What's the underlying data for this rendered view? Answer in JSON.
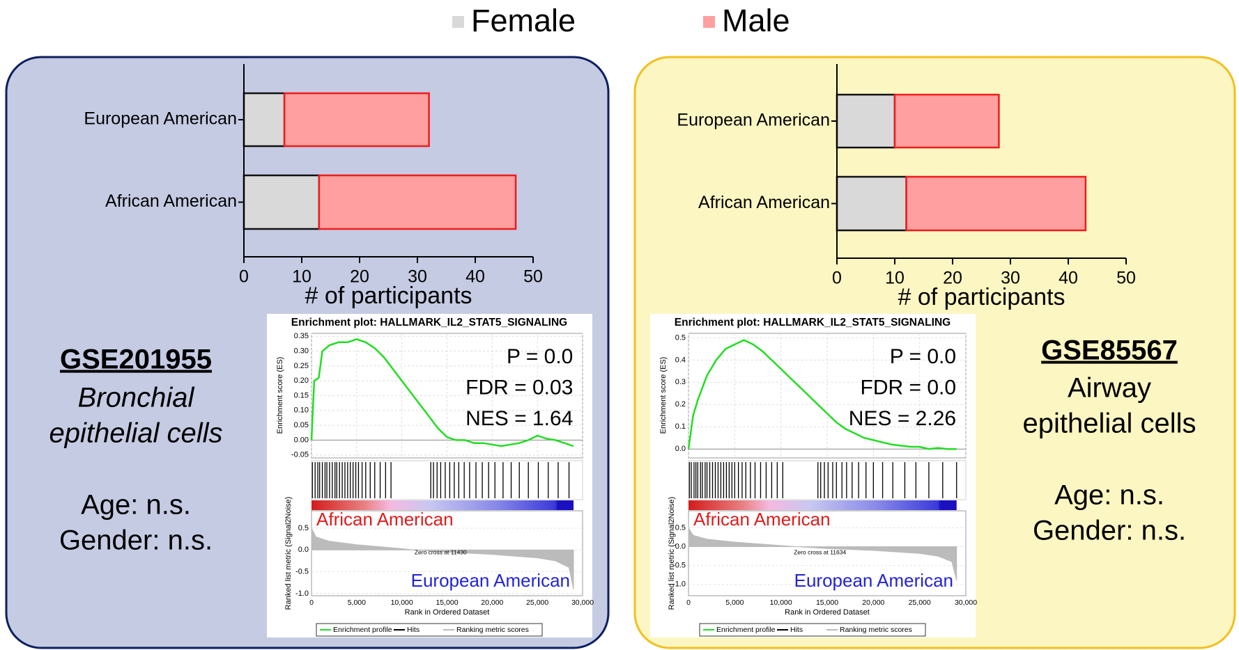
{
  "chart_data": [
    {
      "type": "bar",
      "orientation": "horizontal",
      "stacked": true,
      "categories": [
        "European American",
        "African American"
      ],
      "series": [
        {
          "name": "Female",
          "color": "#d9d9d9",
          "stroke": "#111111",
          "values": [
            7,
            13
          ]
        },
        {
          "name": "Male",
          "color": "#ff9f9f",
          "stroke": "#ee1c1c",
          "values": [
            25,
            34
          ]
        }
      ],
      "xlim": [
        0,
        50
      ],
      "xticks": [
        0,
        10,
        20,
        30,
        40,
        50
      ],
      "xlabel": "# of participants"
    },
    {
      "type": "gsea",
      "title": "Enrichment plot: HALLMARK_IL2_STAT5_SIGNALING",
      "ylabel": "Enrichment score (ES)",
      "y2label": "Ranked list metric (Signal2Noise)",
      "xlabel": "Rank in Ordered Dataset",
      "xlim": [
        0,
        30000
      ],
      "xticks": [
        0,
        {
          "value": 5000,
          "label": "5,000"
        },
        {
          "value": 10000,
          "label": "10,000"
        },
        {
          "value": 15000,
          "label": "15,000"
        },
        {
          "value": 20000,
          "label": "20,000"
        },
        {
          "value": 25000,
          "label": "25,000"
        },
        {
          "value": 30000,
          "label": "30,000"
        }
      ],
      "ylim": [
        -0.06,
        0.36
      ],
      "yticks": [
        -0.05,
        {
          "value": 0,
          "label": "0.00"
        },
        0.05,
        {
          "value": 0.1,
          "label": "0.10"
        },
        0.15,
        {
          "value": 0.2,
          "label": "0.20"
        },
        0.25,
        {
          "value": 0.3,
          "label": "0.30"
        },
        0.35
      ],
      "y2lim": [
        -1.05,
        0.9
      ],
      "y2ticks": [
        {
          "value": -1,
          "label": "-1.0"
        },
        -0.5,
        {
          "value": 0,
          "label": "0.0"
        },
        0.5
      ],
      "grid": true,
      "series": [
        {
          "name": "Enrichment profile",
          "color": "#22dd22",
          "x": [
            0,
            300,
            800,
            1200,
            2000,
            3000,
            4000,
            5000,
            6000,
            7000,
            8000,
            9000,
            10000,
            11000,
            12000,
            13000,
            14000,
            15000,
            16000,
            17000,
            18000,
            19000,
            20000,
            21000,
            22000,
            23000,
            24000,
            25000,
            26000,
            27000,
            28000,
            29000
          ],
          "values": [
            0,
            0.2,
            0.21,
            0.3,
            0.32,
            0.33,
            0.33,
            0.34,
            0.33,
            0.31,
            0.28,
            0.24,
            0.2,
            0.16,
            0.12,
            0.08,
            0.04,
            0.01,
            0,
            0,
            -0.01,
            -0.01,
            -0.015,
            -0.02,
            -0.015,
            -0.01,
            0,
            0.015,
            0.005,
            0,
            -0.01,
            -0.02
          ]
        },
        {
          "name": "Hits",
          "color": "#000000",
          "x": [
            100,
            400,
            700,
            900,
            1200,
            1500,
            1700,
            2000,
            2300,
            2600,
            2800,
            3100,
            3400,
            3700,
            4000,
            4300,
            4600,
            4900,
            5200,
            5600,
            6000,
            6500,
            7000,
            7600,
            8200,
            8800,
            13200,
            13500,
            13900,
            14300,
            14800,
            15300,
            15800,
            16300,
            16900,
            17500,
            18200,
            18900,
            19600,
            20300,
            21200,
            22100,
            23000,
            24000,
            25100,
            26200,
            27300,
            28500
          ]
        },
        {
          "name": "Ranking metric scores",
          "color": "#bbbbbb",
          "axis": "y2",
          "x": [
            0,
            500,
            2000,
            5000,
            10000,
            11430,
            15000,
            20000,
            25000,
            27000,
            28500,
            29000
          ],
          "values": [
            0.5,
            0.3,
            0.2,
            0.12,
            0.03,
            0,
            -0.05,
            -0.1,
            -0.18,
            -0.25,
            -0.4,
            -0.9
          ]
        }
      ],
      "stats": [
        "P = 0.0",
        "FDR = 0.03",
        "NES = 1.64"
      ],
      "class_labels": [
        "African American",
        "European American"
      ],
      "class_colors": [
        "#e01b1b",
        "#2323d6"
      ],
      "zero_cross": "Zero cross at 11430"
    },
    {
      "type": "bar",
      "orientation": "horizontal",
      "stacked": true,
      "categories": [
        "European American",
        "African American"
      ],
      "series": [
        {
          "name": "Female",
          "color": "#d9d9d9",
          "stroke": "#111111",
          "values": [
            10,
            12
          ]
        },
        {
          "name": "Male",
          "color": "#ff9f9f",
          "stroke": "#ee1c1c",
          "values": [
            18,
            31
          ]
        }
      ],
      "xlim": [
        0,
        50
      ],
      "xticks": [
        0,
        10,
        20,
        30,
        40,
        50
      ],
      "xlabel": "# of participants"
    },
    {
      "type": "gsea",
      "title": "Enrichment plot: HALLMARK_IL2_STAT5_SIGNALING",
      "ylabel": "Enrichment score (ES)",
      "y2label": "Ranked list metric (Signal2Noise)",
      "xlabel": "Rank in Ordered Dataset",
      "xlim": [
        0,
        30000
      ],
      "xticks": [
        0,
        {
          "value": 5000,
          "label": "5,000"
        },
        {
          "value": 10000,
          "label": "10,000"
        },
        {
          "value": 15000,
          "label": "15,000"
        },
        {
          "value": 20000,
          "label": "20,000"
        },
        {
          "value": 25000,
          "label": "25,000"
        },
        {
          "value": 30000,
          "label": "30,000"
        }
      ],
      "ylim": [
        -0.04,
        0.52
      ],
      "yticks": [
        {
          "value": 0,
          "label": "0.0"
        },
        0.1,
        0.2,
        0.3,
        0.4,
        0.5
      ],
      "y2lim": [
        -1.3,
        0.95
      ],
      "y2ticks": [
        {
          "value": -1,
          "label": "-1.0"
        },
        -0.5,
        {
          "value": 0,
          "label": "0.0"
        },
        0.5
      ],
      "grid": true,
      "series": [
        {
          "name": "Enrichment profile",
          "color": "#22dd22",
          "x": [
            0,
            500,
            1000,
            2000,
            3000,
            4000,
            5000,
            6000,
            7000,
            8000,
            9000,
            10000,
            11000,
            12000,
            13000,
            14000,
            15000,
            16000,
            17000,
            18000,
            19000,
            20000,
            21000,
            22000,
            23000,
            24000,
            25000,
            26000,
            27000,
            28000,
            29000
          ],
          "values": [
            0,
            0.15,
            0.22,
            0.33,
            0.4,
            0.45,
            0.47,
            0.49,
            0.47,
            0.44,
            0.4,
            0.36,
            0.32,
            0.28,
            0.24,
            0.2,
            0.16,
            0.12,
            0.09,
            0.07,
            0.05,
            0.04,
            0.03,
            0.02,
            0.015,
            0.01,
            0.01,
            0,
            0.005,
            0,
            0
          ]
        },
        {
          "name": "Hits",
          "color": "#000000",
          "x": [
            100,
            300,
            600,
            800,
            1000,
            1300,
            1500,
            1800,
            2000,
            2300,
            2600,
            2900,
            3200,
            3500,
            3800,
            4100,
            4400,
            4700,
            5000,
            5400,
            5800,
            6200,
            6700,
            7200,
            7800,
            8400,
            9000,
            9600,
            10200,
            14000,
            14300,
            14700,
            15100,
            15600,
            16000,
            16600,
            17100,
            17700,
            18400,
            19200,
            20000,
            21000,
            22100,
            23400,
            24600,
            26000,
            27500,
            29000
          ]
        },
        {
          "name": "Ranking metric scores",
          "color": "#bbbbbb",
          "axis": "y2",
          "x": [
            0,
            500,
            2000,
            5000,
            10000,
            11634,
            15000,
            20000,
            25000,
            27000,
            28500,
            29000
          ],
          "values": [
            0.5,
            0.3,
            0.2,
            0.12,
            0.03,
            0,
            -0.05,
            -0.1,
            -0.18,
            -0.25,
            -0.4,
            -0.9
          ]
        }
      ],
      "stats": [
        "P = 0.0",
        "FDR = 0.0",
        "NES = 2.26"
      ],
      "class_labels": [
        "African American",
        "European American"
      ],
      "class_colors": [
        "#e01b1b",
        "#2323d6"
      ],
      "zero_cross": "Zero cross at 11634"
    }
  ],
  "panels": [
    {
      "accession": "GSE201955",
      "cell_type": [
        "Bronchial",
        "epithelial cells"
      ],
      "notes": [
        "Age: n.s.",
        "Gender: n.s."
      ]
    },
    {
      "accession": "GSE85567",
      "cell_type": [
        "Airway",
        "epithelial cells"
      ],
      "notes": [
        "Age: n.s.",
        "Gender: n.s."
      ]
    }
  ]
}
